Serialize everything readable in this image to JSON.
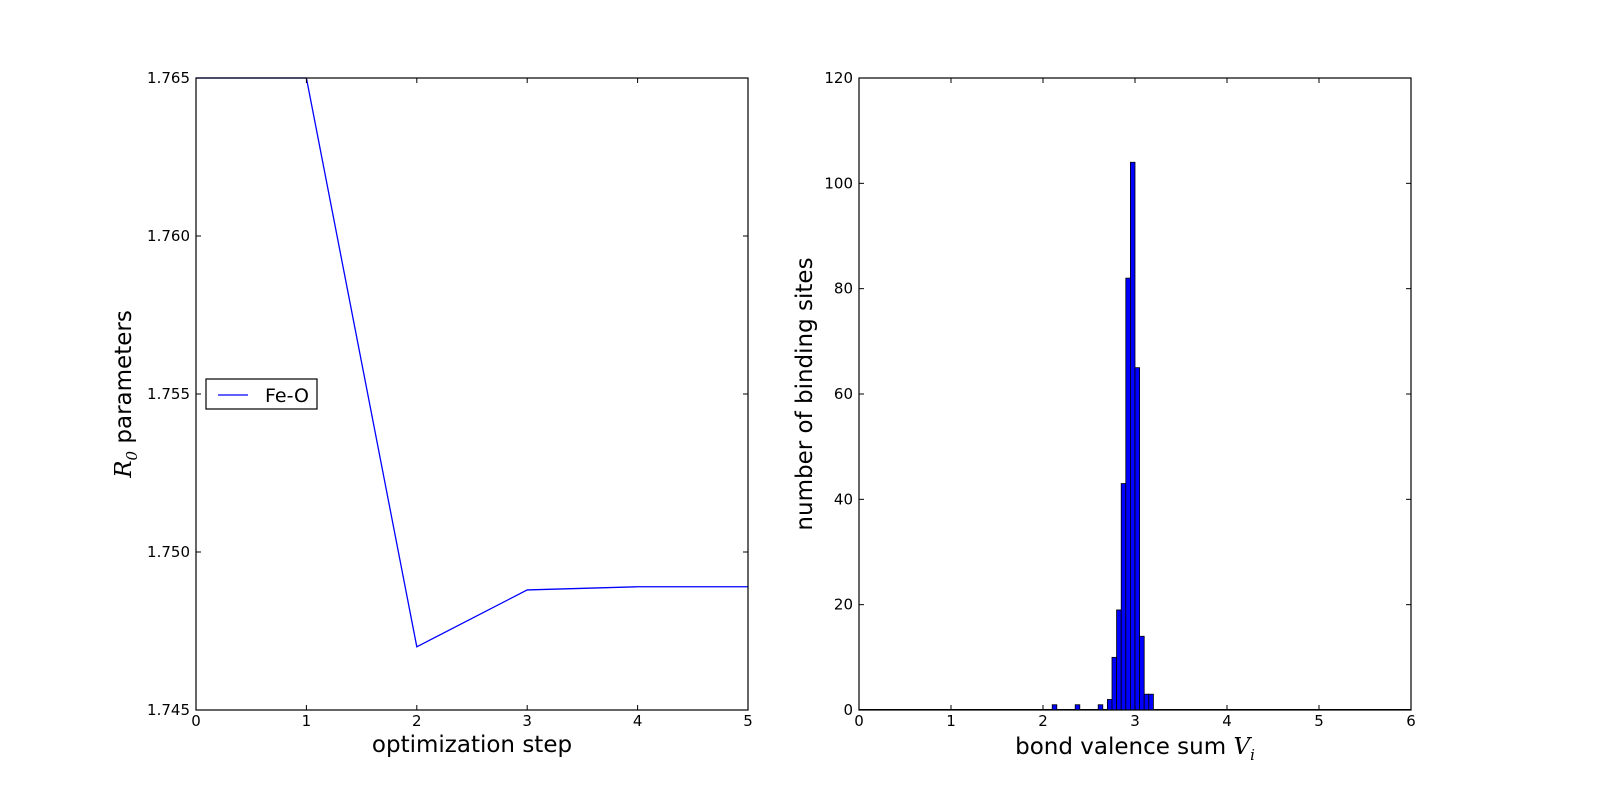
{
  "chart_data": [
    {
      "type": "line",
      "xlabel": "optimization step",
      "ylabel": {
        "symbol": "R",
        "subscript": "0",
        "text": "parameters"
      },
      "xlim": [
        0,
        5
      ],
      "ylim": [
        1.745,
        1.765
      ],
      "xticks": [
        "0",
        "1",
        "2",
        "3",
        "4",
        "5"
      ],
      "yticks": [
        "1.745",
        "1.750",
        "1.755",
        "1.760",
        "1.765"
      ],
      "grid": false,
      "legend_position": "center-left",
      "series": [
        {
          "name": "Fe-O",
          "color": "#0000ff",
          "x": [
            0,
            1,
            2,
            3,
            4,
            5
          ],
          "y": [
            1.765,
            1.765,
            1.747,
            1.7488,
            1.7489,
            1.7489
          ]
        }
      ]
    },
    {
      "type": "bar",
      "subtype": "histogram",
      "xlabel": {
        "text": "bond valence sum",
        "symbol": "V",
        "subscript": "i"
      },
      "ylabel": "number of binding sites",
      "xlim": [
        0,
        6
      ],
      "ylim": [
        0,
        120
      ],
      "xticks": [
        "0",
        "1",
        "2",
        "3",
        "4",
        "5",
        "6"
      ],
      "yticks": [
        "0",
        "20",
        "40",
        "60",
        "80",
        "100",
        "120"
      ],
      "grid": false,
      "bar_color": "#0000ff",
      "bin_width": 0.05,
      "bins": [
        {
          "x": 2.1,
          "count": 1
        },
        {
          "x": 2.35,
          "count": 1
        },
        {
          "x": 2.6,
          "count": 1
        },
        {
          "x": 2.7,
          "count": 2
        },
        {
          "x": 2.75,
          "count": 10
        },
        {
          "x": 2.8,
          "count": 19
        },
        {
          "x": 2.85,
          "count": 43
        },
        {
          "x": 2.9,
          "count": 82
        },
        {
          "x": 2.95,
          "count": 104
        },
        {
          "x": 3.0,
          "count": 65
        },
        {
          "x": 3.05,
          "count": 14
        },
        {
          "x": 3.1,
          "count": 3
        },
        {
          "x": 3.15,
          "count": 3
        }
      ]
    }
  ]
}
